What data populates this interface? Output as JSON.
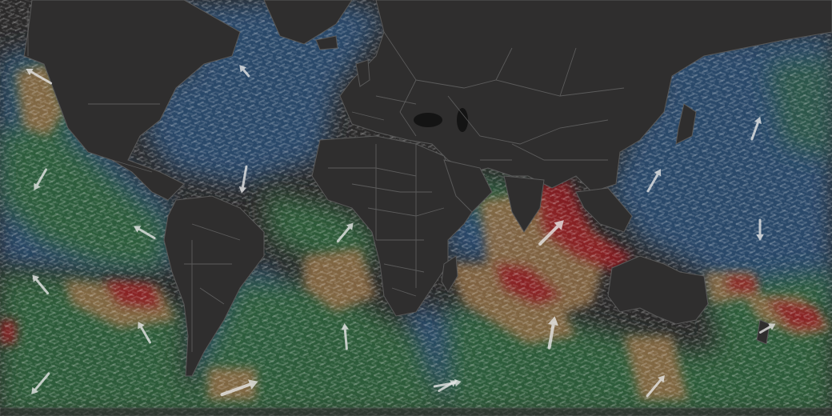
{
  "map": {
    "type": "ocean-current-animation",
    "colors": {
      "background": "#2b2a2a",
      "land": "#2f2e2e",
      "calm": "#2a4a6b",
      "mild": "#2f5e3a",
      "moderate": "#8a6a45",
      "strong": "#8b1f24"
    },
    "arrows": [
      {
        "id": "arrow-n-pacific-east",
        "dir_deg": 210
      },
      {
        "id": "arrow-n-atlantic-west",
        "dir_deg": 190
      },
      {
        "id": "arrow-alaska",
        "dir_deg": 300
      },
      {
        "id": "arrow-c-pacific",
        "dir_deg": 320
      },
      {
        "id": "arrow-e-pacific",
        "dir_deg": 300
      },
      {
        "id": "arrow-s-pacific-1",
        "dir_deg": 330
      },
      {
        "id": "arrow-s-pacific-2",
        "dir_deg": 70
      },
      {
        "id": "arrow-s-pacific-3",
        "dir_deg": 320
      },
      {
        "id": "arrow-s-pacific-4",
        "dir_deg": 220
      },
      {
        "id": "arrow-chile",
        "dir_deg": 40
      },
      {
        "id": "arrow-s-atlantic",
        "dir_deg": 80
      },
      {
        "id": "arrow-s-atlantic-2",
        "dir_deg": 60
      },
      {
        "id": "arrow-s-indian",
        "dir_deg": 10
      },
      {
        "id": "arrow-s-indian-2",
        "dir_deg": 60
      },
      {
        "id": "arrow-s-indian-3",
        "dir_deg": 355
      },
      {
        "id": "arrow-bay-bengal",
        "dir_deg": 45
      },
      {
        "id": "arrow-japan",
        "dir_deg": 30
      },
      {
        "id": "arrow-n-pacific-w",
        "dir_deg": 20
      },
      {
        "id": "arrow-pacific-ne",
        "dir_deg": 180
      },
      {
        "id": "arrow-australia-s",
        "dir_deg": 40
      }
    ]
  }
}
